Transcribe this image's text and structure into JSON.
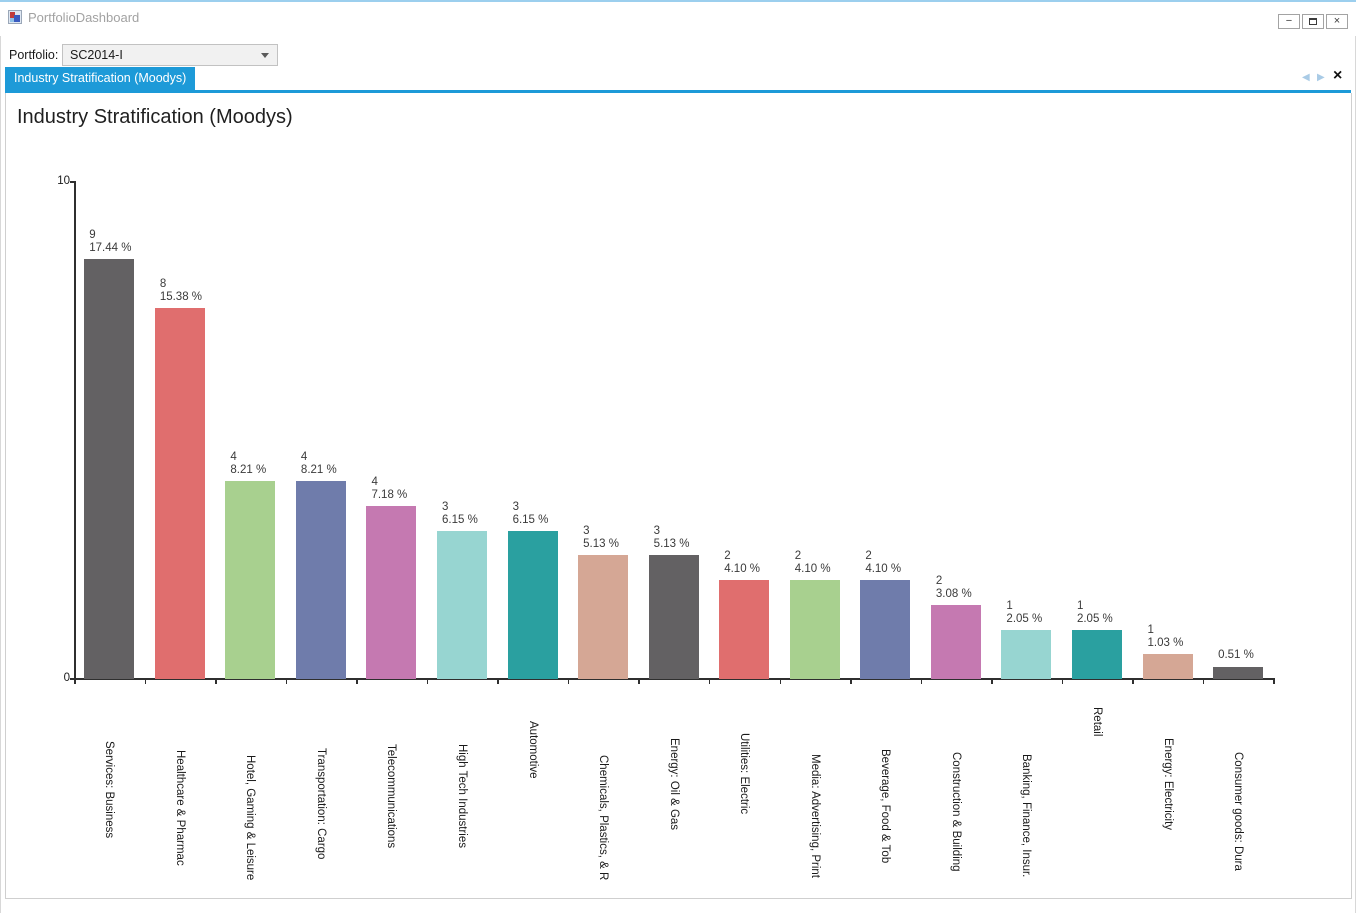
{
  "window": {
    "title": "PortfolioDashboard"
  },
  "window_controls": {
    "minimize_glyph": "−",
    "close_glyph": "×"
  },
  "toolbar": {
    "portfolio_label": "Portfolio:",
    "portfolio_value": "SC2014-I"
  },
  "tab_bar": {
    "active_tab": "Industry Stratification (Moodys)",
    "prev_icon": "◀",
    "next_icon": "▶",
    "close_icon": "×"
  },
  "chart_data": {
    "type": "bar",
    "title": "Industry Stratification (Moodys)",
    "xlabel": "",
    "ylabel": "",
    "ylim": [
      0,
      10
    ],
    "ytick_labels": [
      "10",
      "0"
    ],
    "grid": false,
    "legend": false,
    "bar_height_rule": "height proportional to percent value, percent 20.6 equals full axis",
    "categories": [
      "Services: Business",
      "Healthcare & Pharmac",
      "Hotel, Gaming & Leisure",
      "Transportation: Cargo",
      "Telecommunications",
      "High Tech Industries",
      "Automotive",
      "Chemicals, Plastics, & R",
      "Energy: Oil & Gas",
      "Utilities: Electric",
      "Media: Advertising, Print",
      "Beverage, Food & Tob",
      "Construction & Building",
      "Banking, Finance, Insur.",
      "Retail",
      "Energy: Electricity",
      "Consumer goods: Dura"
    ],
    "series": [
      {
        "name": "count",
        "values": [
          9,
          8,
          4,
          4,
          4,
          3,
          3,
          3,
          3,
          2,
          2,
          2,
          2,
          1,
          1,
          1,
          null
        ]
      },
      {
        "name": "percent",
        "values": [
          17.44,
          15.38,
          8.21,
          8.21,
          7.18,
          6.15,
          6.15,
          5.13,
          5.13,
          4.1,
          4.1,
          4.1,
          3.08,
          2.05,
          2.05,
          1.03,
          0.51
        ]
      }
    ],
    "percent_suffix": " %",
    "palette": [
      "#636163",
      "#e06e6e",
      "#a8d08f",
      "#6f7cab",
      "#c579b1",
      "#97d5d1",
      "#2aa0a0",
      "#d5a795"
    ]
  }
}
